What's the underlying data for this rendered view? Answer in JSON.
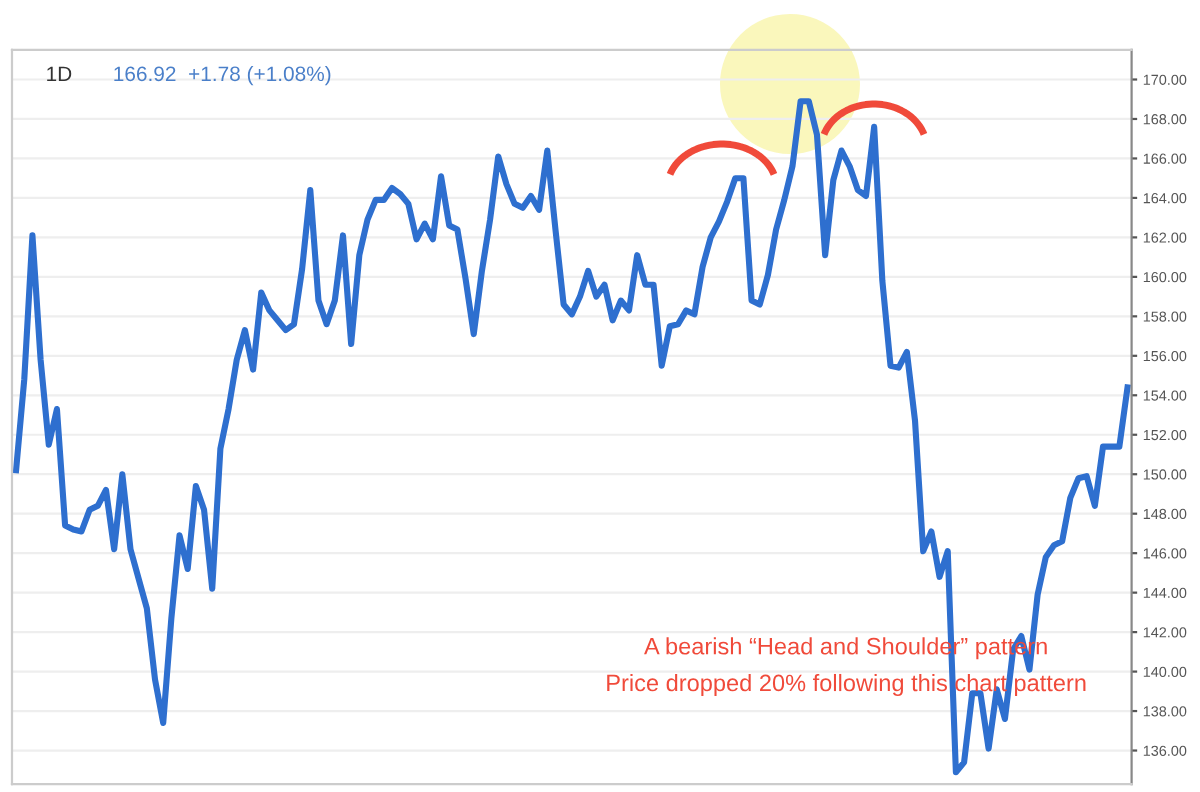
{
  "chart_data": {
    "type": "line",
    "categories": [
      null,
      null,
      null,
      null,
      null,
      null,
      null,
      null,
      null,
      null,
      null,
      null,
      null,
      null,
      null,
      null,
      null,
      null,
      null,
      null,
      null,
      null,
      null,
      null,
      null,
      null,
      null,
      null,
      null,
      null,
      null,
      null,
      null,
      null,
      null,
      null,
      null,
      null,
      null,
      null,
      null,
      null,
      null,
      null,
      null,
      null,
      null,
      null,
      null,
      null,
      null,
      null,
      null,
      null,
      null,
      null,
      null,
      null,
      null,
      null,
      null,
      null,
      null,
      null,
      null,
      null,
      null,
      null,
      null,
      null,
      null,
      null,
      null,
      null,
      null,
      null,
      null,
      null,
      null,
      null,
      null,
      null,
      null,
      null,
      null,
      null,
      null,
      null,
      null,
      null,
      null,
      null,
      null,
      null,
      null,
      null,
      null,
      null,
      null,
      null,
      null,
      null,
      null,
      null,
      null,
      null,
      null,
      null,
      null,
      null,
      null,
      null,
      null,
      null,
      null,
      null,
      null,
      null,
      null,
      null,
      null,
      null,
      null,
      null,
      null,
      null,
      null,
      null,
      null,
      null,
      null,
      null,
      null,
      null,
      null,
      null,
      null
    ],
    "series": [
      {
        "color": "#2e6fcf",
        "values": [
          150.2,
          154.8,
          162.1,
          155.8,
          151.5,
          153.3,
          147.4,
          147.2,
          147.1,
          148.2,
          148.4,
          149.2,
          146.2,
          150.0,
          146.2,
          144.7,
          143.2,
          139.6,
          137.4,
          142.7,
          146.9,
          145.2,
          149.4,
          148.2,
          144.2,
          151.3,
          153.3,
          155.8,
          157.3,
          155.3,
          159.2,
          158.3,
          157.8,
          157.3,
          157.6,
          160.4,
          164.4,
          158.8,
          157.6,
          158.8,
          162.1,
          156.6,
          161.1,
          162.9,
          163.9,
          163.9,
          164.5,
          164.2,
          163.7,
          161.9,
          162.7,
          161.9,
          165.1,
          162.6,
          162.4,
          159.9,
          157.1,
          160.3,
          162.9,
          166.1,
          164.7,
          163.7,
          163.5,
          164.1,
          163.4,
          166.4,
          162.4,
          158.6,
          158.1,
          159.0,
          160.3,
          159.0,
          159.6,
          157.8,
          158.8,
          158.3,
          161.1,
          159.6,
          159.6,
          155.5,
          157.5,
          157.6,
          158.3,
          158.1,
          160.5,
          162.0,
          162.8,
          163.8,
          165.0,
          165.0,
          158.8,
          158.6,
          160.1,
          162.4,
          163.9,
          165.6,
          168.9,
          168.9,
          167.2,
          161.1,
          164.9,
          166.4,
          165.6,
          164.4,
          164.1,
          167.6,
          159.8,
          155.5,
          155.4,
          156.2,
          152.7,
          146.1,
          147.1,
          144.8,
          146.1,
          134.9,
          135.4,
          138.9,
          138.9,
          136.1,
          139.1,
          137.6,
          141.1,
          141.8,
          140.1,
          143.9,
          145.8,
          146.4,
          146.6,
          148.8,
          149.8,
          149.9,
          148.4,
          151.4,
          151.4,
          151.4,
          154.4
        ]
      }
    ],
    "ylim": [
      134.3,
      171.5
    ],
    "yticks": [
      {
        "value": 136,
        "label": "136.00"
      },
      {
        "value": 138,
        "label": "138.00"
      },
      {
        "value": 140,
        "label": "140.00"
      },
      {
        "value": 142,
        "label": "142.00"
      },
      {
        "value": 144,
        "label": "144.00"
      },
      {
        "value": 146,
        "label": "146.00"
      },
      {
        "value": 148,
        "label": "148.00"
      },
      {
        "value": 150,
        "label": "150.00"
      },
      {
        "value": 152,
        "label": "152.00"
      },
      {
        "value": 154,
        "label": "154.00"
      },
      {
        "value": 156,
        "label": "156.00"
      },
      {
        "value": 158,
        "label": "158.00"
      },
      {
        "value": 160,
        "label": "160.00"
      },
      {
        "value": 162,
        "label": "162.00"
      },
      {
        "value": 164,
        "label": "164.00"
      },
      {
        "value": 166,
        "label": "166.00"
      },
      {
        "value": 168,
        "label": "168.00"
      },
      {
        "value": 170,
        "label": "170.00"
      }
    ],
    "grid": "y",
    "annotations": [
      "1D",
      "166.92  +1.78 (+1.08%)",
      "A bearish “Head and Shoulder” pattern",
      "Price dropped 20% following this chart pattern"
    ]
  }
}
